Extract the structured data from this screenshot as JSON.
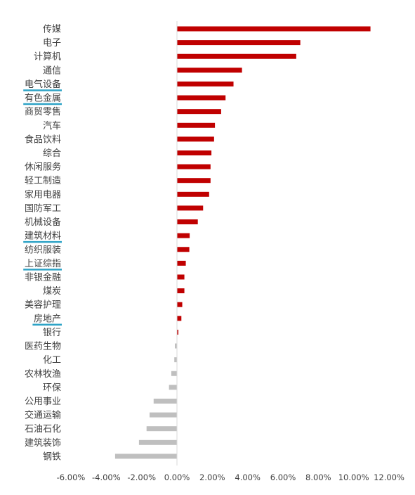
{
  "chart_data": {
    "type": "bar",
    "orientation": "horizontal",
    "categories": [
      "传媒",
      "电子",
      "计算机",
      "通信",
      "电气设备",
      "有色金属",
      "商贸零售",
      "汽车",
      "食品饮料",
      "综合",
      "休闲服务",
      "轻工制造",
      "家用电器",
      "国防军工",
      "机械设备",
      "建筑材料",
      "纺织服装",
      "上证综指",
      "非银金融",
      "煤炭",
      "美容护理",
      "房地产",
      "银行",
      "医药生物",
      "化工",
      "农林牧渔",
      "环保",
      "公用事业",
      "交通运输",
      "石油石化",
      "建筑装饰",
      "钢铁"
    ],
    "values": [
      10.95,
      6.98,
      6.75,
      3.68,
      3.2,
      2.75,
      2.5,
      2.15,
      2.1,
      1.95,
      1.9,
      1.9,
      1.82,
      1.48,
      1.18,
      0.72,
      0.7,
      0.5,
      0.42,
      0.42,
      0.3,
      0.25,
      0.08,
      -0.12,
      -0.15,
      -0.32,
      -0.45,
      -1.32,
      -1.55,
      -1.72,
      -2.15,
      -3.5
    ],
    "highlighted": [
      "电气设备",
      "有色金属",
      "建筑材料",
      "上证综指",
      "房地产"
    ],
    "xlim": [
      -6,
      12
    ],
    "x_ticks": [
      "-6.00%",
      "-4.00%",
      "-2.00%",
      "0.00%",
      "2.00%",
      "4.00%",
      "6.00%",
      "8.00%",
      "10.00%",
      "12.00%"
    ],
    "x_tick_values": [
      -6,
      -4,
      -2,
      0,
      2,
      4,
      6,
      8,
      10,
      12
    ],
    "title": "",
    "xlabel": "",
    "ylabel": "",
    "grid": false,
    "colors": {
      "positive": "#c00000",
      "negative": "#bfbfbf",
      "highlight_underline": "#2ea3c6",
      "axis": "#d9d9d9",
      "text": "#404040"
    }
  }
}
